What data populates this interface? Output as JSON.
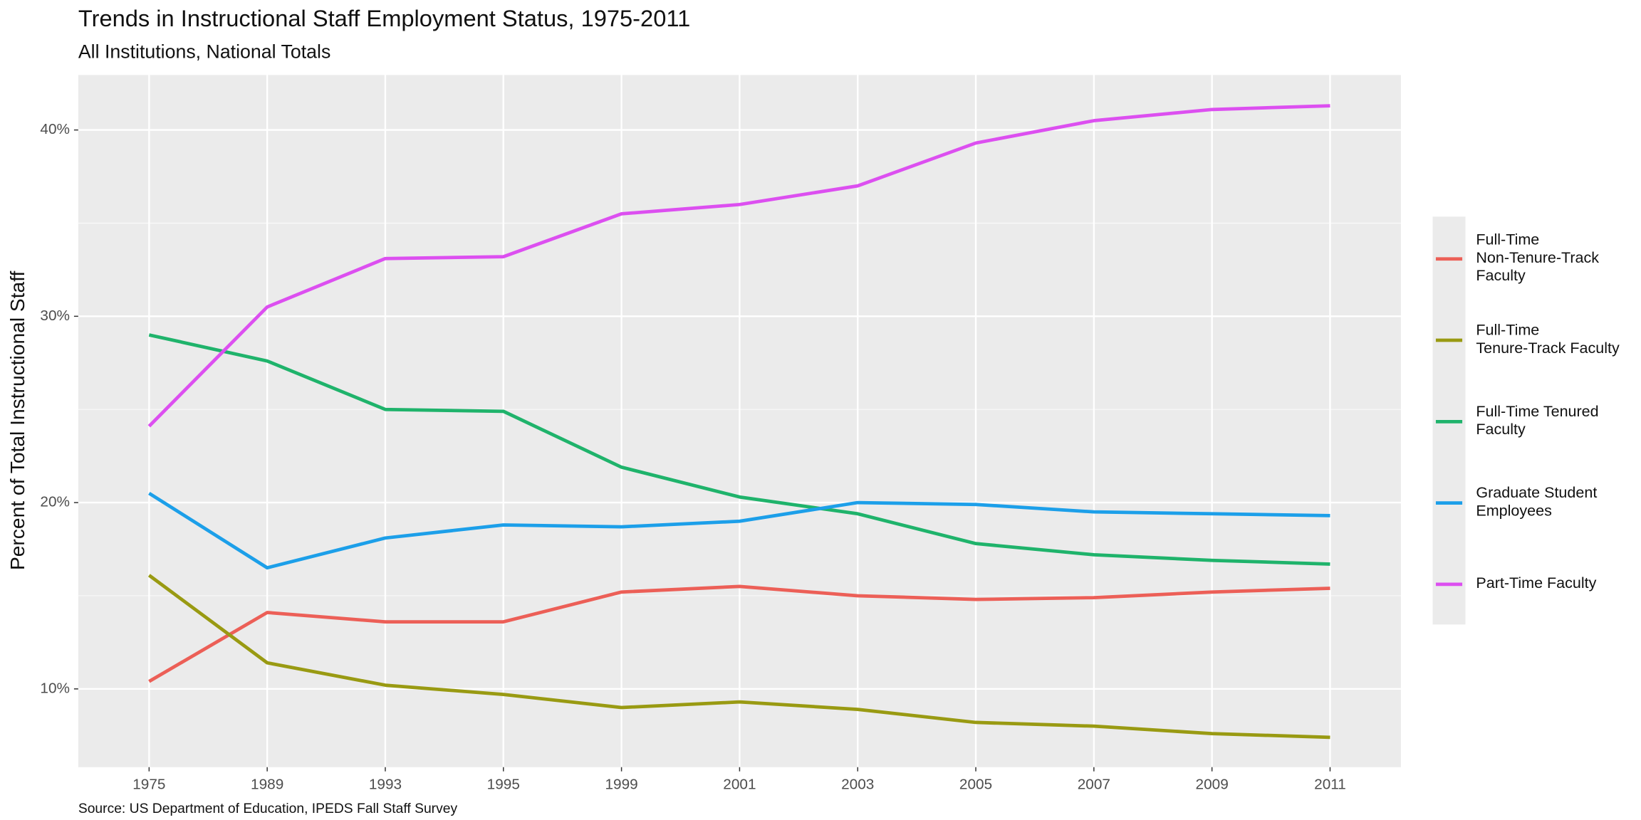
{
  "chart_data": {
    "type": "line",
    "title": "Trends in Instructional Staff Employment Status, 1975-2011",
    "subtitle": "All Institutions, National Totals",
    "y_label": "Percent of Total Instructional Staff",
    "caption": "Source: US Department of Education, IPEDS Fall Staff Survey",
    "categories": [
      "1975",
      "1989",
      "1993",
      "1995",
      "1999",
      "2001",
      "2003",
      "2005",
      "2007",
      "2009",
      "2011"
    ],
    "series": [
      {
        "name": "Full-Time\nNon-Tenure-Track\nFaculty",
        "color": "#ec5f57",
        "values": [
          10.4,
          14.1,
          13.6,
          13.6,
          15.2,
          15.5,
          15.0,
          14.8,
          14.9,
          15.2,
          15.4
        ]
      },
      {
        "name": "Full-Time\nTenure-Track Faculty",
        "color": "#999a12",
        "values": [
          16.1,
          11.4,
          10.2,
          9.7,
          9.0,
          9.3,
          8.9,
          8.2,
          8.0,
          7.6,
          7.4
        ]
      },
      {
        "name": "Full-Time Tenured\nFaculty",
        "color": "#1fb36b",
        "values": [
          29.0,
          27.6,
          25.0,
          24.9,
          21.9,
          20.3,
          19.4,
          17.8,
          17.2,
          16.9,
          16.7
        ]
      },
      {
        "name": "Graduate Student\nEmployees",
        "color": "#1c9fe9",
        "values": [
          20.5,
          16.5,
          18.1,
          18.8,
          18.7,
          19.0,
          20.0,
          19.9,
          19.5,
          19.4,
          19.3
        ]
      },
      {
        "name": "Part-Time Faculty",
        "color": "#dc4ff0",
        "values": [
          24.1,
          30.5,
          33.1,
          33.2,
          35.5,
          36.0,
          37.0,
          39.3,
          40.5,
          41.1,
          41.3
        ]
      }
    ],
    "ylim": [
      5.8,
      42.95
    ],
    "yticks": [
      {
        "value": 10,
        "label": "10%"
      },
      {
        "value": 20,
        "label": "20%"
      },
      {
        "value": 30,
        "label": "30%"
      },
      {
        "value": 40,
        "label": "40%"
      }
    ],
    "grid": true,
    "legend": "right"
  }
}
